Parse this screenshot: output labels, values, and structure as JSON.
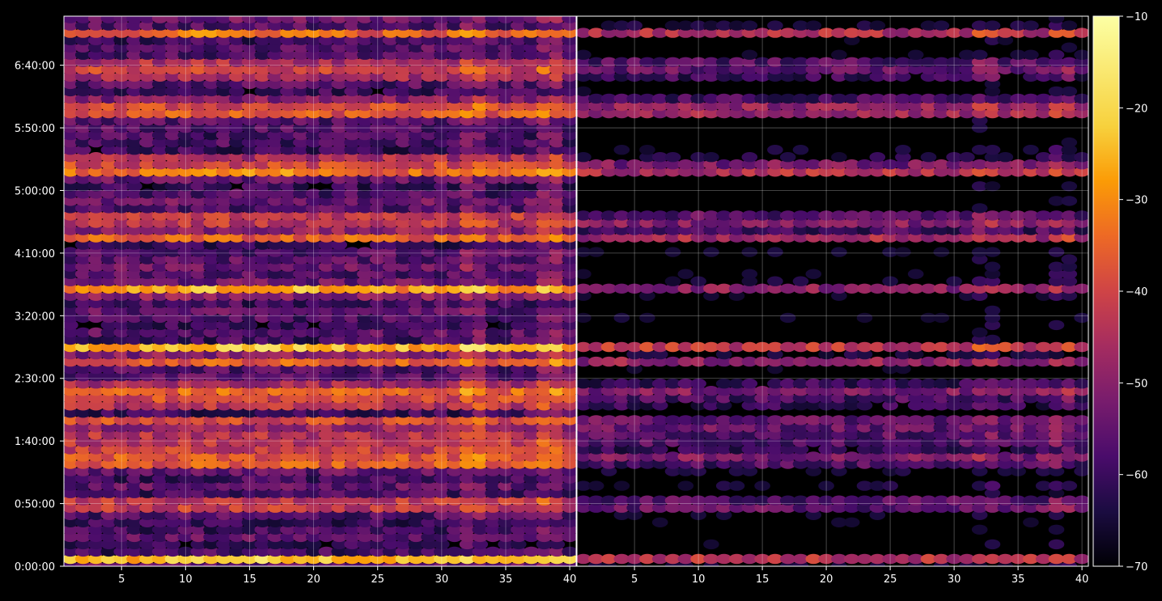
{
  "chart_data": {
    "type": "heatmap",
    "colormap": "inferno",
    "background": "#000000",
    "axis_color": "#ffffff",
    "grid": true,
    "legend_position": "right",
    "panels": 2,
    "x_range": [
      1,
      40
    ],
    "x_ticks": [
      5,
      10,
      15,
      20,
      25,
      30,
      35,
      40
    ],
    "x_tick_labels": [
      "5",
      "10",
      "15",
      "20",
      "25",
      "30",
      "35",
      "40"
    ],
    "y_range_seconds": [
      0,
      26350
    ],
    "y_ticks_seconds": [
      0,
      3000,
      6000,
      9000,
      12000,
      15000,
      18000,
      21000,
      24000
    ],
    "y_tick_labels": [
      "0:00:00",
      "0:50:00",
      "1:40:00",
      "2:30:00",
      "3:20:00",
      "4:10:00",
      "5:00:00",
      "5:50:00",
      "6:40:00"
    ],
    "colorbar": {
      "min": -70,
      "max": -10,
      "ticks": [
        -70,
        -60,
        -50,
        -40,
        -30,
        -20,
        -10
      ],
      "tick_labels": [
        "−70",
        "−60",
        "−50",
        "−40",
        "−30",
        "−20",
        "−10"
      ]
    },
    "row_spacing_seconds": 350,
    "strong_rows_seconds": [
      350,
      3000,
      5050,
      5400,
      6150,
      6850,
      7900,
      8500,
      9900,
      10500,
      13250,
      15850,
      16600,
      18950,
      19350,
      21800,
      22150,
      23650,
      23950,
      25600
    ],
    "panel_level_offset": [
      0,
      -14
    ],
    "high_columns": [
      32,
      33,
      38,
      39
    ]
  }
}
